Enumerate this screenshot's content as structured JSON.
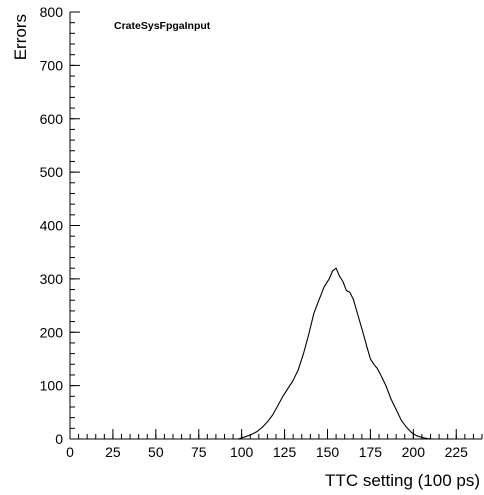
{
  "chart_data": {
    "type": "line",
    "title": "CrateSysFpgaInput",
    "xlabel": "TTC setting (100 ps)",
    "ylabel": "Errors",
    "xlim": [
      0,
      240
    ],
    "ylim": [
      0,
      800
    ],
    "x_major_ticks": [
      0,
      25,
      50,
      75,
      100,
      125,
      150,
      175,
      200,
      225
    ],
    "x_minor_step": 5,
    "y_major_ticks": [
      0,
      100,
      200,
      300,
      400,
      500,
      600,
      700,
      800
    ],
    "y_minor_step": 20,
    "grid": false,
    "legend": "none",
    "line_color": "#000000",
    "series": [
      {
        "x": [
          0,
          98,
          100,
          103,
          106,
          109,
          112,
          115,
          118,
          121,
          124,
          127,
          130,
          133,
          136,
          139,
          142,
          145,
          148,
          151,
          153,
          155,
          157,
          159,
          161,
          163,
          165,
          167,
          169,
          171,
          173,
          175,
          177,
          179,
          181,
          184,
          187,
          190,
          193,
          196,
          199,
          202,
          205,
          208,
          211,
          240
        ],
        "y": [
          0,
          0,
          2,
          5,
          9,
          14,
          22,
          32,
          45,
          62,
          80,
          95,
          110,
          130,
          160,
          195,
          235,
          260,
          285,
          300,
          315,
          320,
          305,
          295,
          278,
          275,
          262,
          240,
          218,
          195,
          172,
          150,
          140,
          132,
          120,
          100,
          75,
          55,
          35,
          22,
          12,
          6,
          3,
          1,
          0,
          0
        ]
      }
    ]
  }
}
